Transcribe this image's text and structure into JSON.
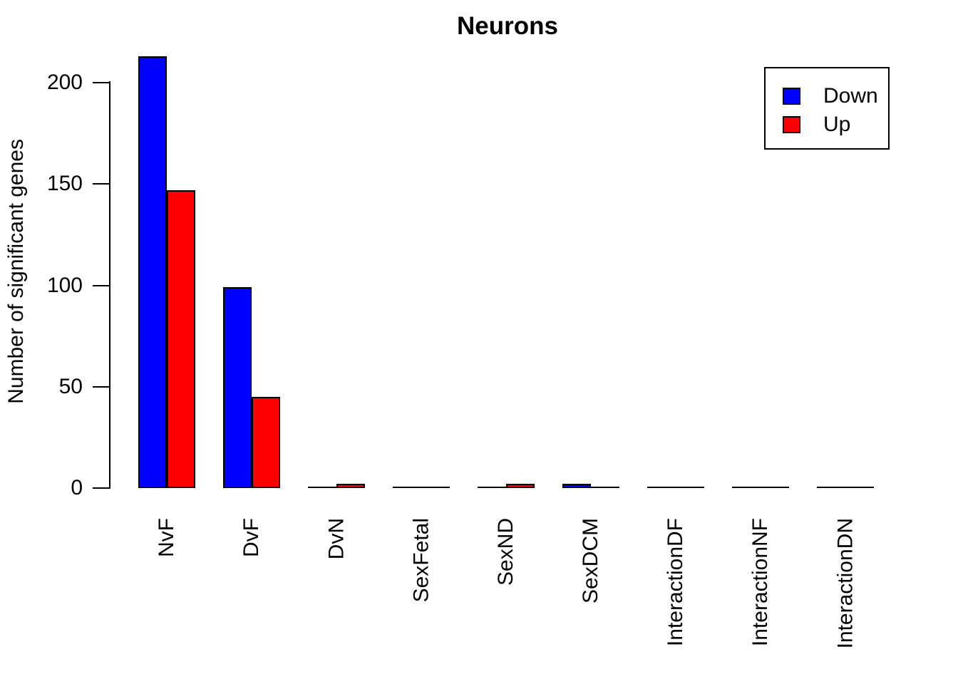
{
  "figure": {
    "background": "#FFFFFF"
  },
  "chart_data": {
    "type": "bar",
    "title": "Neurons",
    "xlabel": "",
    "ylabel": "Number of significant genes",
    "categories": [
      "NvF",
      "DvF",
      "DvN",
      "SexFetal",
      "SexND",
      "SexDCM",
      "InteractionDF",
      "InteractionNF",
      "InteractionDN"
    ],
    "series": [
      {
        "name": "Down",
        "color": "#0000FF",
        "values": [
          213,
          99,
          0,
          0,
          0,
          2,
          0,
          0,
          0
        ]
      },
      {
        "name": "Up",
        "color": "#FF0000",
        "values": [
          147,
          45,
          2,
          0,
          2,
          0,
          0,
          0,
          0
        ]
      }
    ],
    "ylim": [
      0,
      215
    ],
    "yticks": [
      0,
      50,
      100,
      150,
      200
    ],
    "grid": false,
    "legend_position": "top-right",
    "bar_border_color": "#000000",
    "axis_color": "#000000"
  }
}
